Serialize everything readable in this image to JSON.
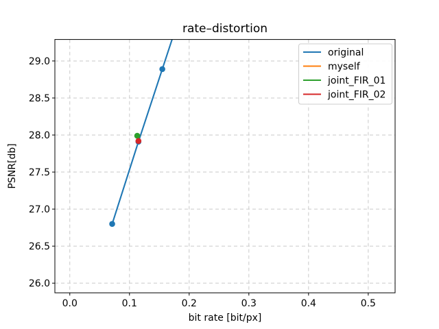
{
  "figure": {
    "background": "#ffffff",
    "axes_facecolor": "#ffffff",
    "spine_color": "#000000",
    "grid_color": "#c9c9c9"
  },
  "chart_data": {
    "type": "line",
    "title": "rate–distortion",
    "xlabel": "bit rate [bit/px]",
    "ylabel": "PSNR[db]",
    "xlim": [
      -0.025,
      0.545
    ],
    "ylim": [
      25.87,
      29.29
    ],
    "xticks": [
      0.0,
      0.1,
      0.2,
      0.3,
      0.4,
      0.5
    ],
    "yticks": [
      26.0,
      26.5,
      27.0,
      27.5,
      28.0,
      28.5,
      29.0
    ],
    "xtick_labels": [
      "0.0",
      "0.1",
      "0.2",
      "0.3",
      "0.4",
      "0.5"
    ],
    "ytick_labels": [
      "26.0",
      "26.5",
      "27.0",
      "27.5",
      "28.0",
      "28.5",
      "29.0"
    ],
    "grid": true,
    "grid_style": "dashed",
    "legend_position": "upper right",
    "series": [
      {
        "name": "original",
        "color": "#1f77b4",
        "marker": "circle",
        "line": true,
        "extends_beyond_top": true,
        "points": [
          [
            0.071,
            26.8
          ],
          [
            0.115,
            27.91
          ],
          [
            0.155,
            28.89
          ]
        ]
      },
      {
        "name": "myself",
        "color": "#ff7f0e",
        "marker": "circle",
        "line": false,
        "note": "legend entry only; no visible points in plot",
        "points": []
      },
      {
        "name": "joint_FIR_01",
        "color": "#2ca02c",
        "marker": "circle",
        "line": false,
        "points": [
          [
            0.113,
            27.99
          ]
        ]
      },
      {
        "name": "joint_FIR_02",
        "color": "#d62728",
        "marker": "circle",
        "line": false,
        "points": [
          [
            0.115,
            27.92
          ]
        ]
      }
    ]
  }
}
